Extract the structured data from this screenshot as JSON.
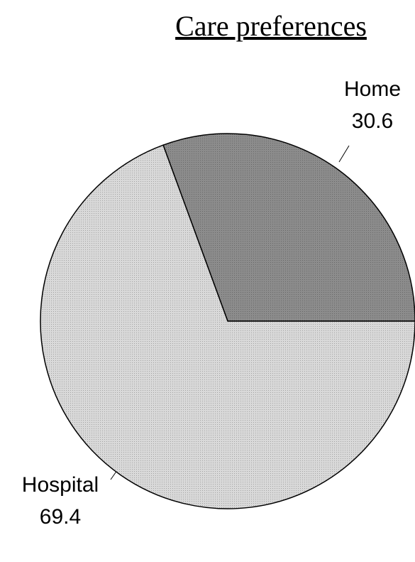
{
  "chart_data": {
    "type": "pie",
    "title": "Care preferences",
    "categories": [
      "Home",
      "Hospital"
    ],
    "values": [
      30.6,
      69.4
    ],
    "colors": [
      "#8c8c8c",
      "#d9d9d9"
    ]
  }
}
